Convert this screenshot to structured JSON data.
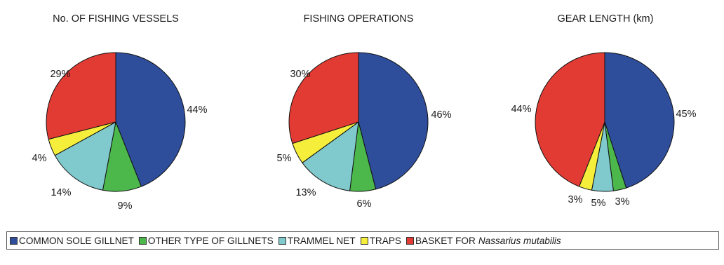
{
  "chart_data": [
    {
      "type": "pie",
      "title": "No. OF FISHING VESSELS",
      "slices": [
        {
          "name": "COMMON SOLE GILLNET",
          "value": 44,
          "label": "44%"
        },
        {
          "name": "OTHER TYPE OF GILLNETS",
          "value": 9,
          "label": "9%"
        },
        {
          "name": "TRAMMEL NET",
          "value": 14,
          "label": "14%"
        },
        {
          "name": "TRAPS",
          "value": 4,
          "label": "4%"
        },
        {
          "name": "BASKET FOR Nassarius mutabilis",
          "value": 29,
          "label": "29%"
        }
      ]
    },
    {
      "type": "pie",
      "title": "FISHING OPERATIONS",
      "slices": [
        {
          "name": "COMMON SOLE GILLNET",
          "value": 46,
          "label": "46%"
        },
        {
          "name": "OTHER TYPE OF GILLNETS",
          "value": 6,
          "label": "6%"
        },
        {
          "name": "TRAMMEL NET",
          "value": 13,
          "label": "13%"
        },
        {
          "name": "TRAPS",
          "value": 5,
          "label": "5%"
        },
        {
          "name": "BASKET FOR Nassarius mutabilis",
          "value": 30,
          "label": "30%"
        }
      ]
    },
    {
      "type": "pie",
      "title": "GEAR LENGTH (km)",
      "slices": [
        {
          "name": "COMMON SOLE GILLNET",
          "value": 45,
          "label": "45%"
        },
        {
          "name": "OTHER TYPE OF GILLNETS",
          "value": 3,
          "label": "3%"
        },
        {
          "name": "TRAMMEL NET",
          "value": 5,
          "label": "5%"
        },
        {
          "name": "TRAPS",
          "value": 3,
          "label": "3%"
        },
        {
          "name": "BASKET FOR Nassarius mutabilis",
          "value": 44,
          "label": "44%"
        }
      ]
    }
  ],
  "legend": {
    "items": [
      {
        "label": "COMMON SOLE GILLNET",
        "color": "#2e4d9b"
      },
      {
        "label": "OTHER TYPE OF GILLNETS",
        "color": "#4cb84c"
      },
      {
        "label": "TRAMMEL NET",
        "color": "#80c9cc"
      },
      {
        "label": "TRAPS",
        "color": "#f5ef3c"
      },
      {
        "label": "BASKET FOR",
        "italic": "Nassarius mutabilis",
        "color": "#e23b33"
      }
    ]
  }
}
